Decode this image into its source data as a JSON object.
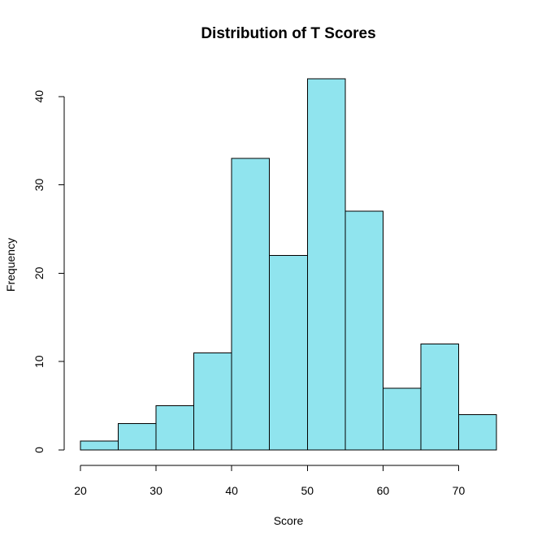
{
  "chart_data": {
    "type": "bar",
    "title": "Distribution of T Scores",
    "xlabel": "Score",
    "ylabel": "Frequency",
    "bins": [
      {
        "start": 20,
        "end": 25,
        "value": 1
      },
      {
        "start": 25,
        "end": 30,
        "value": 3
      },
      {
        "start": 30,
        "end": 35,
        "value": 5
      },
      {
        "start": 35,
        "end": 40,
        "value": 11
      },
      {
        "start": 40,
        "end": 45,
        "value": 33
      },
      {
        "start": 45,
        "end": 50,
        "value": 22
      },
      {
        "start": 50,
        "end": 55,
        "value": 42
      },
      {
        "start": 55,
        "end": 60,
        "value": 27
      },
      {
        "start": 60,
        "end": 65,
        "value": 7
      },
      {
        "start": 65,
        "end": 70,
        "value": 12
      },
      {
        "start": 70,
        "end": 75,
        "value": 4
      }
    ],
    "x_ticks": [
      20,
      30,
      40,
      50,
      60,
      70
    ],
    "y_ticks": [
      0,
      10,
      20,
      30,
      40
    ],
    "xlim": [
      20,
      75
    ],
    "ylim": [
      0,
      42
    ],
    "grid": false,
    "bar_color": "#90e4ee",
    "bar_edge_color": "#000000"
  }
}
